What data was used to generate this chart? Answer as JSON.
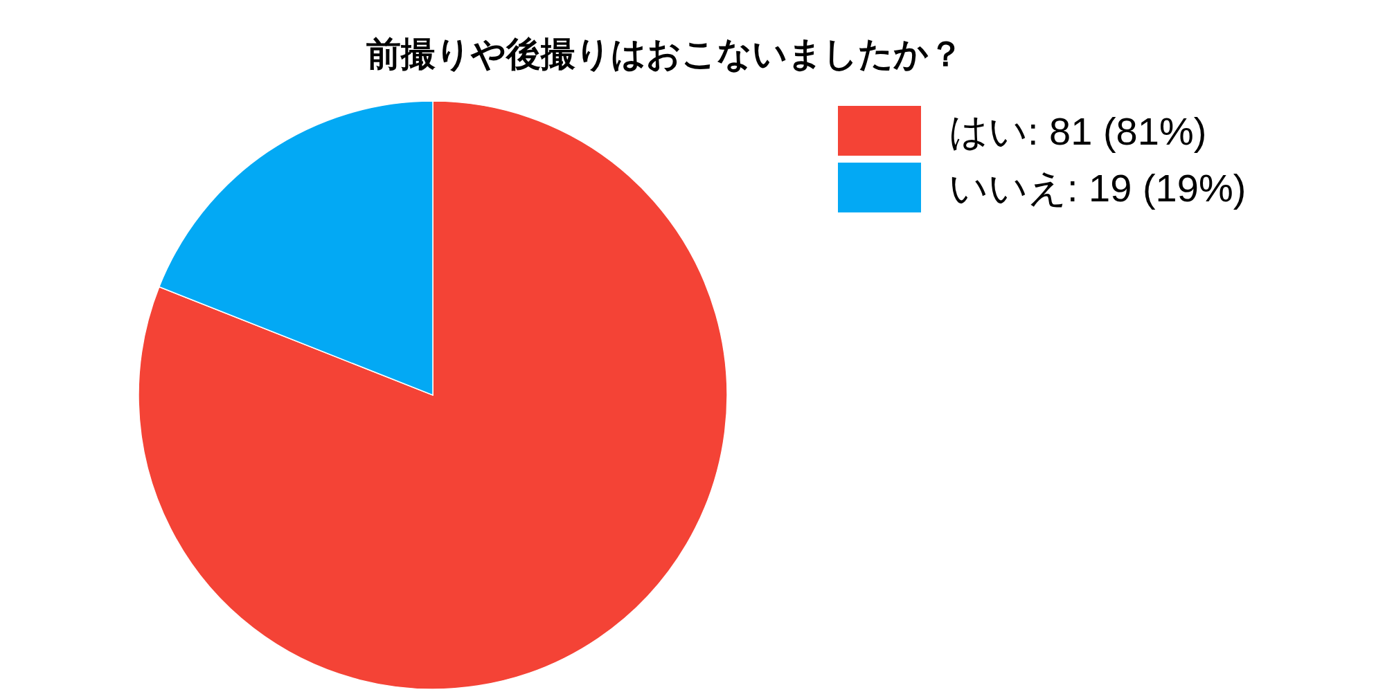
{
  "chart_data": {
    "type": "pie",
    "title": "前撮りや後撮りはおこないましたか？",
    "categories": [
      "はい",
      "いいえ"
    ],
    "values": [
      81,
      19
    ],
    "value_labels": [
      "81 (81%)",
      "19 (19%)"
    ],
    "colors": [
      "#f44336",
      "#03a9f4"
    ],
    "legend": "top right"
  }
}
